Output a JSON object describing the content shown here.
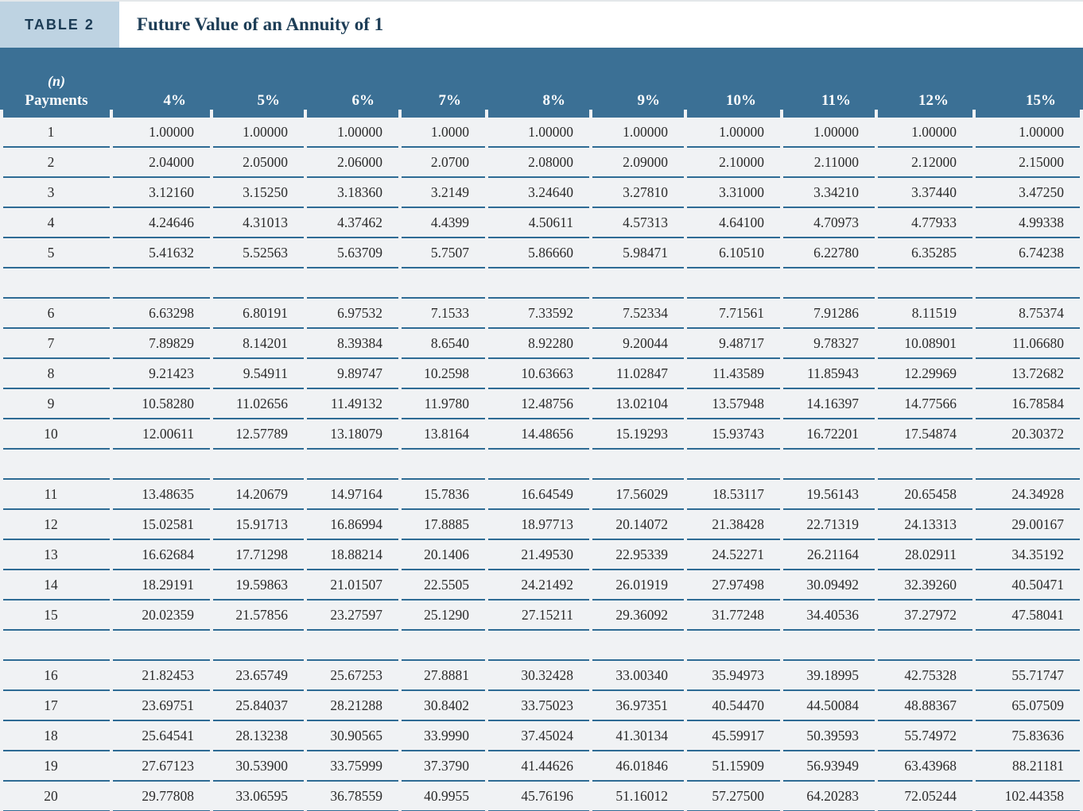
{
  "page": {
    "table_label": "TABLE 2",
    "title": "Future Value of an Annuity of 1"
  },
  "colors": {
    "header_band": "#3b7095",
    "badge_background": "#bed3e2",
    "title_text": "#1d3d56",
    "row_background": "#f0f2f4",
    "rule_line": "#2e6b94",
    "number_text": "#2b2b2b"
  },
  "table": {
    "n_header_line1": "(n)",
    "n_header_line2": "Payments",
    "rate_headers": [
      "4%",
      "5%",
      "6%",
      "7%",
      "8%",
      "9%",
      "10%",
      "11%",
      "12%",
      "15%"
    ],
    "group_size": 5,
    "rows": [
      {
        "n": "1",
        "values": [
          "1.00000",
          "1.00000",
          "1.00000",
          "1.0000",
          "1.00000",
          "1.00000",
          "1.00000",
          "1.00000",
          "1.00000",
          "1.00000"
        ]
      },
      {
        "n": "2",
        "values": [
          "2.04000",
          "2.05000",
          "2.06000",
          "2.0700",
          "2.08000",
          "2.09000",
          "2.10000",
          "2.11000",
          "2.12000",
          "2.15000"
        ]
      },
      {
        "n": "3",
        "values": [
          "3.12160",
          "3.15250",
          "3.18360",
          "3.2149",
          "3.24640",
          "3.27810",
          "3.31000",
          "3.34210",
          "3.37440",
          "3.47250"
        ]
      },
      {
        "n": "4",
        "values": [
          "4.24646",
          "4.31013",
          "4.37462",
          "4.4399",
          "4.50611",
          "4.57313",
          "4.64100",
          "4.70973",
          "4.77933",
          "4.99338"
        ]
      },
      {
        "n": "5",
        "values": [
          "5.41632",
          "5.52563",
          "5.63709",
          "5.7507",
          "5.86660",
          "5.98471",
          "6.10510",
          "6.22780",
          "6.35285",
          "6.74238"
        ]
      },
      {
        "n": "6",
        "values": [
          "6.63298",
          "6.80191",
          "6.97532",
          "7.1533",
          "7.33592",
          "7.52334",
          "7.71561",
          "7.91286",
          "8.11519",
          "8.75374"
        ]
      },
      {
        "n": "7",
        "values": [
          "7.89829",
          "8.14201",
          "8.39384",
          "8.6540",
          "8.92280",
          "9.20044",
          "9.48717",
          "9.78327",
          "10.08901",
          "11.06680"
        ]
      },
      {
        "n": "8",
        "values": [
          "9.21423",
          "9.54911",
          "9.89747",
          "10.2598",
          "10.63663",
          "11.02847",
          "11.43589",
          "11.85943",
          "12.29969",
          "13.72682"
        ]
      },
      {
        "n": "9",
        "values": [
          "10.58280",
          "11.02656",
          "11.49132",
          "11.9780",
          "12.48756",
          "13.02104",
          "13.57948",
          "14.16397",
          "14.77566",
          "16.78584"
        ]
      },
      {
        "n": "10",
        "values": [
          "12.00611",
          "12.57789",
          "13.18079",
          "13.8164",
          "14.48656",
          "15.19293",
          "15.93743",
          "16.72201",
          "17.54874",
          "20.30372"
        ]
      },
      {
        "n": "11",
        "values": [
          "13.48635",
          "14.20679",
          "14.97164",
          "15.7836",
          "16.64549",
          "17.56029",
          "18.53117",
          "19.56143",
          "20.65458",
          "24.34928"
        ]
      },
      {
        "n": "12",
        "values": [
          "15.02581",
          "15.91713",
          "16.86994",
          "17.8885",
          "18.97713",
          "20.14072",
          "21.38428",
          "22.71319",
          "24.13313",
          "29.00167"
        ]
      },
      {
        "n": "13",
        "values": [
          "16.62684",
          "17.71298",
          "18.88214",
          "20.1406",
          "21.49530",
          "22.95339",
          "24.52271",
          "26.21164",
          "28.02911",
          "34.35192"
        ]
      },
      {
        "n": "14",
        "values": [
          "18.29191",
          "19.59863",
          "21.01507",
          "22.5505",
          "24.21492",
          "26.01919",
          "27.97498",
          "30.09492",
          "32.39260",
          "40.50471"
        ]
      },
      {
        "n": "15",
        "values": [
          "20.02359",
          "21.57856",
          "23.27597",
          "25.1290",
          "27.15211",
          "29.36092",
          "31.77248",
          "34.40536",
          "37.27972",
          "47.58041"
        ]
      },
      {
        "n": "16",
        "values": [
          "21.82453",
          "23.65749",
          "25.67253",
          "27.8881",
          "30.32428",
          "33.00340",
          "35.94973",
          "39.18995",
          "42.75328",
          "55.71747"
        ]
      },
      {
        "n": "17",
        "values": [
          "23.69751",
          "25.84037",
          "28.21288",
          "30.8402",
          "33.75023",
          "36.97351",
          "40.54470",
          "44.50084",
          "48.88367",
          "65.07509"
        ]
      },
      {
        "n": "18",
        "values": [
          "25.64541",
          "28.13238",
          "30.90565",
          "33.9990",
          "37.45024",
          "41.30134",
          "45.59917",
          "50.39593",
          "55.74972",
          "75.83636"
        ]
      },
      {
        "n": "19",
        "values": [
          "27.67123",
          "30.53900",
          "33.75999",
          "37.3790",
          "41.44626",
          "46.01846",
          "51.15909",
          "56.93949",
          "63.43968",
          "88.21181"
        ]
      },
      {
        "n": "20",
        "values": [
          "29.77808",
          "33.06595",
          "36.78559",
          "40.9955",
          "45.76196",
          "51.16012",
          "57.27500",
          "64.20283",
          "72.05244",
          "102.44358"
        ]
      }
    ]
  }
}
